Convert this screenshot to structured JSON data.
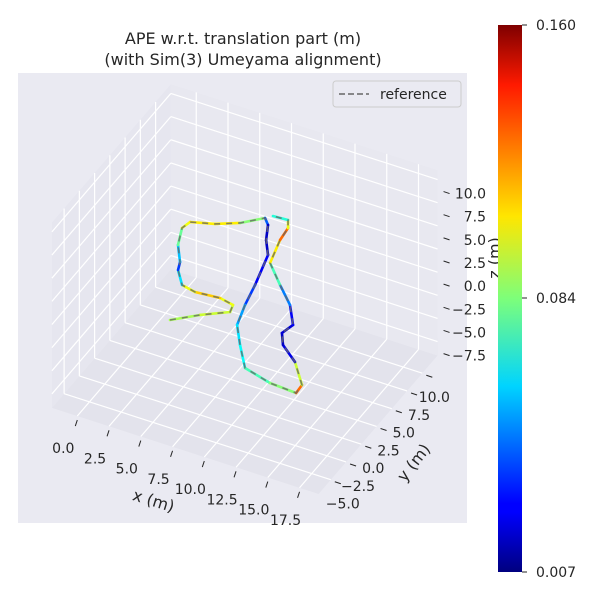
{
  "chart_data": {
    "type": "line",
    "projection": "3d",
    "title": "APE w.r.t. translation part (m)\n(with Sim(3) Umeyama alignment)",
    "title_lines": [
      "APE w.r.t. translation part (m)",
      "(with Sim(3) Umeyama alignment)"
    ],
    "xlabel": "x (m)",
    "ylabel": "y (m)",
    "zlabel": "z (m)",
    "xticks": [
      "0.0",
      "2.5",
      "5.0",
      "7.5",
      "10.0",
      "12.5",
      "15.0",
      "17.5"
    ],
    "yticks": [
      "−5.0",
      "−2.5",
      "0.0",
      "2.5",
      "5.0",
      "7.5",
      "10.0"
    ],
    "zticks": [
      "−7.5",
      "−5.0",
      "−2.5",
      "0.0",
      "2.5",
      "5.0",
      "7.5",
      "10.0"
    ],
    "xlim": [
      -2,
      19
    ],
    "ylim": [
      -7,
      12.5
    ],
    "zlim": [
      -9,
      11
    ],
    "grid": true,
    "legend": {
      "placement": "top-right",
      "entries": [
        {
          "name": "reference",
          "style": "dashed",
          "color": "#666666"
        }
      ]
    },
    "colormap": "jet",
    "colorbar": {
      "min": 0.007,
      "max": 0.16,
      "ticks": [
        "0.160",
        "0.084",
        "0.007"
      ]
    },
    "trajectory": {
      "x": [
        5.04,
        6.62,
        8.32,
        8.13,
        6.96,
        5.1,
        3.93,
        2.89,
        2.59,
        1.56,
        0.91,
        1.09,
        2.73,
        4.22,
        5.5,
        6.05,
        6.73,
        7.64,
        8.43,
        8.87,
        9.44,
        10.68,
        12.21,
        14.54,
        16.68,
        16.62,
        14.97,
        13.33,
        12.63,
        12.89,
        11.64,
        9.97,
        8.19,
        7.59,
        7.45,
        7.02,
        5.88
      ],
      "y": [
        -2.3,
        -0.68,
        0.72,
        1.6,
        1.91,
        1.68,
        1.99,
        3.5,
        4.45,
        6.26,
        8.27,
        9.22,
        9.89,
        10.89,
        12.33,
        11.67,
        9.94,
        8.36,
        4.59,
        2.03,
        -0.46,
        -2.56,
        -4.92,
        -5.69,
        -5.86,
        -4.77,
        -2.48,
        -1.03,
        0.25,
        1.53,
        3.63,
        5.48,
        7.55,
        10.44,
        12.04,
        12.93,
        12.83
      ],
      "z": [
        0,
        0,
        0,
        0,
        0,
        0,
        0,
        0,
        0,
        0,
        0,
        0,
        0,
        0,
        0,
        0,
        0,
        0,
        0,
        0,
        0,
        0,
        0,
        0,
        0,
        0,
        0,
        0,
        0,
        0,
        0,
        0,
        0,
        0,
        0,
        0,
        0
      ],
      "ape": [
        0.09,
        0.09,
        0.1,
        0.09,
        0.11,
        0.11,
        0.09,
        0.03,
        0.04,
        0.07,
        0.09,
        0.11,
        0.1,
        0.11,
        0.06,
        0.02,
        0.015,
        0.02,
        0.03,
        0.04,
        0.06,
        0.06,
        0.07,
        0.08,
        0.09,
        0.16,
        0.03,
        0.015,
        0.02,
        0.02,
        0.03,
        0.06,
        0.09,
        0.12,
        0.13,
        0.07,
        0.07
      ]
    }
  }
}
